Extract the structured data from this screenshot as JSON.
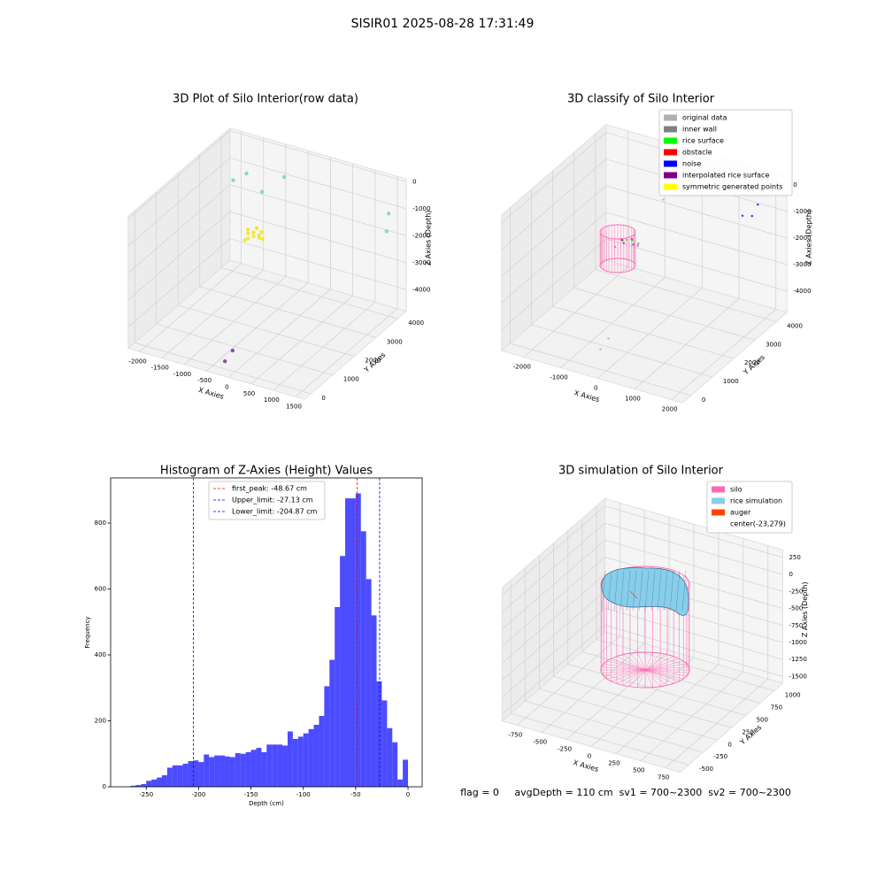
{
  "suptitle": "SISIR01 2025-08-28 17:31:49",
  "footer": "flag = 0     avgDepth = 110 cm  sv1 = 700~2300  sv2 = 700~2300",
  "chart_data": [
    {
      "type": "scatter3d",
      "title": "3D Plot of Silo Interior(row data)",
      "xlabel": "X Axies",
      "ylabel": "Y Axies",
      "zlabel": "Z Axies (Depth)",
      "xlim": [
        -2250,
        1700
      ],
      "ylim": [
        -300,
        4400
      ],
      "zlim": [
        -4800,
        100
      ],
      "xticks": [
        -2000,
        -1500,
        -1000,
        -500,
        0,
        500,
        1000,
        1500
      ],
      "yticks": [
        0,
        1000,
        2000,
        3000,
        4000
      ],
      "zticks": [
        0,
        -1000,
        -2000,
        -3000,
        -4000
      ],
      "series": [
        {
          "color": "#77d7a8",
          "x": [
            -1500,
            -1250,
            -1000,
            -600,
            1500,
            1600
          ],
          "y": [
            3000,
            3100,
            3300,
            3500,
            4000,
            3700
          ],
          "z": [
            -500,
            -200,
            -900,
            -300,
            -1000,
            -1400
          ]
        },
        {
          "color": "#f5e61c",
          "x": [
            -900,
            -800,
            -700,
            -850,
            -750,
            -650,
            -950,
            -800,
            -700,
            -900,
            -600,
            -780
          ],
          "y": [
            2450,
            2500,
            2550,
            2350,
            2400,
            2450,
            2550,
            2650,
            2650,
            2300,
            2500,
            2600
          ],
          "z": [
            -1800,
            -1750,
            -1850,
            -1900,
            -1800,
            -1850,
            -1750,
            -1700,
            -1800,
            -1950,
            -1900,
            -1650
          ]
        },
        {
          "color": "#7b3294",
          "x": [
            -300,
            -350
          ],
          "y": [
            500,
            250
          ],
          "z": [
            -4500,
            -4750
          ]
        }
      ]
    },
    {
      "type": "scatter3d",
      "title": "3D classify of Silo Interior",
      "xlabel": "X Axies",
      "ylabel": "Y Axies",
      "zlabel": "Z Axies (Depth)",
      "xlim": [
        -2600,
        2300
      ],
      "ylim": [
        -400,
        4500
      ],
      "zlim": [
        -4800,
        300
      ],
      "xticks": [
        -2000,
        -1000,
        0,
        1000,
        2000
      ],
      "yticks": [
        0,
        1000,
        2000,
        3000,
        4000
      ],
      "zticks": [
        0,
        -1000,
        -2000,
        -3000,
        -4000
      ],
      "legend": "upper right",
      "series": [
        {
          "name": "original data",
          "color": "#b0b0b0",
          "x": [
            -600,
            -300,
            -400,
            -500
          ],
          "y": [
            3600,
            3200,
            800,
            600
          ],
          "z": [
            -300,
            -700,
            -4300,
            -4600
          ]
        },
        {
          "name": "inner wall",
          "color": "#808080",
          "x": [
            -800,
            -400,
            -300
          ],
          "y": [
            1800,
            2200,
            2000
          ],
          "z": [
            -1700,
            -1700,
            -1600
          ]
        },
        {
          "name": "rice surface",
          "color": "#00ff00",
          "x": [
            -600,
            -500,
            -700
          ],
          "y": [
            2000,
            2100,
            1900
          ],
          "z": [
            -1500,
            -1550,
            -1450
          ]
        },
        {
          "name": "obstacle",
          "color": "#ff0000"
        },
        {
          "name": "noise",
          "color": "#0000ff",
          "x": [
            1500,
            1700,
            1800
          ],
          "y": [
            3800,
            3900,
            4000
          ],
          "z": [
            -1000,
            -1000,
            -600
          ]
        },
        {
          "name": "interpolated rice surface",
          "color": "#800080",
          "x": [
            -650,
            -450,
            -550,
            -750
          ],
          "y": [
            1950,
            2050,
            2150,
            2050
          ],
          "z": [
            -1600,
            -1650,
            -1550,
            -1600
          ]
        },
        {
          "name": "symmetric generated points",
          "color": "#ffff00"
        }
      ]
    },
    {
      "type": "histogram",
      "title": "Histogram of Z-Axies (Height) Values",
      "xlabel": "Depth (cm)",
      "ylabel": "Frequency",
      "bins": [
        -265,
        -260,
        -255,
        -250,
        -245,
        -240,
        -235,
        -230,
        -225,
        -220,
        -215,
        -210,
        -205,
        -200,
        -195,
        -190,
        -185,
        -180,
        -175,
        -170,
        -165,
        -160,
        -155,
        -150,
        -145,
        -140,
        -135,
        -130,
        -125,
        -120,
        -115,
        -110,
        -105,
        -100,
        -95,
        -90,
        -85,
        -80,
        -75,
        -70,
        -65,
        -60,
        -55,
        -50,
        -45,
        -40,
        -35,
        -30,
        -25,
        -20,
        -15,
        -10,
        -5,
        0
      ],
      "values": [
        3,
        5,
        8,
        18,
        22,
        28,
        35,
        58,
        65,
        65,
        70,
        78,
        80,
        75,
        98,
        90,
        95,
        95,
        92,
        90,
        102,
        100,
        105,
        112,
        118,
        105,
        128,
        128,
        128,
        125,
        168,
        145,
        152,
        162,
        175,
        188,
        215,
        305,
        385,
        545,
        700,
        875,
        875,
        890,
        775,
        630,
        520,
        320,
        262,
        178,
        135,
        22,
        82
      ],
      "color": "#0000ff",
      "alpha": 0.7,
      "xlim": [
        -284,
        13.5
      ],
      "ylim": [
        0,
        937
      ],
      "xticks": [
        -250,
        -200,
        -150,
        -100,
        -50,
        0
      ],
      "yticks": [
        0,
        200,
        400,
        600,
        800
      ],
      "legend": "upper center",
      "vlines": [
        {
          "label": "first_peak: -48.67 cm",
          "value": -48.67,
          "color": "#ff0000"
        },
        {
          "label": "Upper_limit: -27.13 cm",
          "value": -27.13,
          "color": "#0000ff"
        },
        {
          "label": "Lower_limit: -204.87 cm",
          "value": -204.87,
          "color": "#0000ff"
        }
      ]
    },
    {
      "type": "surface3d",
      "title": "3D simulation of Silo Interior",
      "xlabel": "X Axies",
      "ylabel": "Y Axies",
      "zlabel": "Z Axies (Depth)",
      "xlim": [
        -900,
        900
      ],
      "ylim": [
        -650,
        1150
      ],
      "zlim": [
        -1600,
        360
      ],
      "xticks": [
        -750,
        -500,
        -250,
        0,
        250,
        500,
        750
      ],
      "yticks": [
        -500,
        -250,
        0,
        250,
        500,
        750,
        1000
      ],
      "zticks": [
        250,
        0,
        -250,
        -500,
        -750,
        -1000,
        -1250,
        -1500
      ],
      "legend": "upper right",
      "series": [
        {
          "name": "silo",
          "color": "#ff69b4"
        },
        {
          "name": "rice simulation",
          "color": "#87ceeb"
        },
        {
          "name": "auger",
          "color": "#ff4500"
        },
        {
          "name": "center(-23,279)"
        }
      ]
    }
  ]
}
